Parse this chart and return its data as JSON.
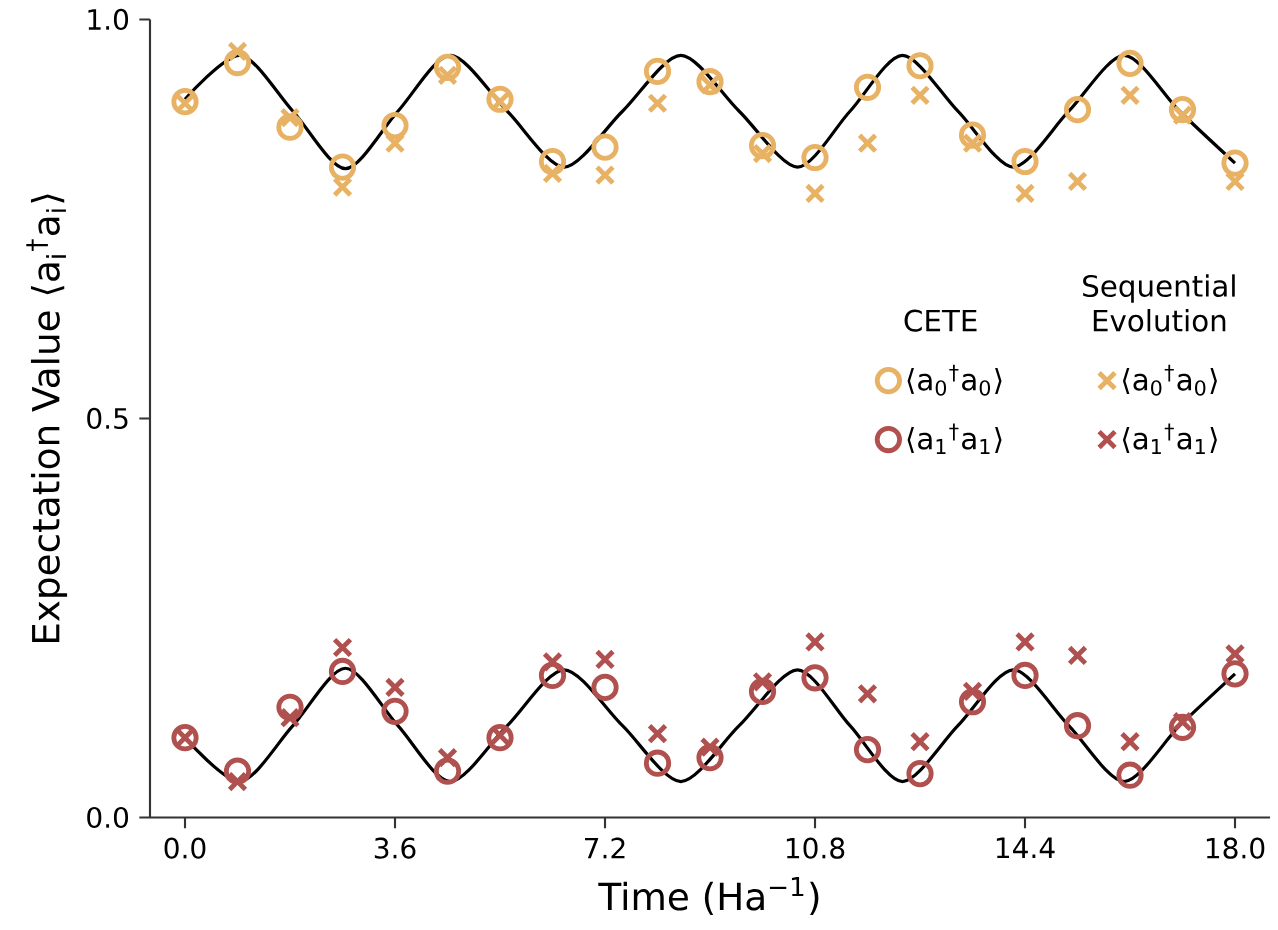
{
  "chart_data": {
    "type": "scatter",
    "xlabel": "Time (Ha$^{−1}$)",
    "ylabel": "Expectation Value ⟨a$_{i}$$^{†}$a$_{i}$⟩",
    "x": [
      0,
      0.9,
      1.8,
      2.7,
      3.6,
      4.5,
      5.4,
      6.3,
      7.2,
      8.1,
      9.0,
      9.9,
      10.8,
      11.7,
      12.6,
      13.5,
      14.4,
      15.3,
      16.2,
      17.1,
      18.0
    ],
    "xlim": [
      -0.6,
      18.6
    ],
    "xticks": [
      {
        "value": 0,
        "label": "0.0"
      },
      {
        "value": 3.6,
        "label": "3.6"
      },
      {
        "value": 7.2,
        "label": "7.2"
      },
      {
        "value": 10.8,
        "label": "10.8"
      },
      {
        "value": 14.4,
        "label": "14.4"
      },
      {
        "value": 18,
        "label": "18.0"
      }
    ],
    "ylim": [
      0,
      1
    ],
    "yticks": [
      {
        "value": 0,
        "label": "0.0"
      },
      {
        "value": 0.5,
        "label": "0.5"
      },
      {
        "value": 1,
        "label": "1.0"
      }
    ],
    "legend": "right",
    "annotations": [
      "CETE",
      "Sequential Evolution"
    ],
    "series": [
      {
        "name": "⟨a$_{0}$$^{†}$a$_{0}$⟩",
        "marker": "circle",
        "color": "#e8b265",
        "values": [
          0.897,
          0.946,
          0.865,
          0.815,
          0.867,
          0.94,
          0.9,
          0.822,
          0.84,
          0.935,
          0.922,
          0.842,
          0.827,
          0.915,
          0.942,
          0.855,
          0.822,
          0.887,
          0.945,
          0.887,
          0.82
        ]
      },
      {
        "name": "⟨a$_{1}$$^{†}$a$_{1}$⟩",
        "marker": "circle",
        "color": "#b0504f",
        "values": [
          0.1,
          0.058,
          0.138,
          0.183,
          0.133,
          0.058,
          0.1,
          0.178,
          0.163,
          0.068,
          0.075,
          0.158,
          0.175,
          0.085,
          0.055,
          0.145,
          0.178,
          0.115,
          0.053,
          0.113,
          0.18
        ]
      },
      {
        "name": "⟨a$_{0}$$^{†}$a$_{0}$⟩",
        "marker": "cross",
        "color": "#e8b265",
        "values": [
          0.895,
          0.96,
          0.877,
          0.79,
          0.845,
          0.93,
          0.897,
          0.807,
          0.805,
          0.895,
          0.918,
          0.832,
          0.782,
          0.845,
          0.905,
          0.845,
          0.782,
          0.797,
          0.905,
          0.88,
          0.797
        ]
      },
      {
        "name": "⟨a$_{1}$$^{†}$a$_{1}$⟩",
        "marker": "cross",
        "color": "#b0504f",
        "values": [
          0.1,
          0.045,
          0.125,
          0.213,
          0.163,
          0.075,
          0.103,
          0.195,
          0.198,
          0.105,
          0.088,
          0.17,
          0.22,
          0.155,
          0.095,
          0.158,
          0.22,
          0.203,
          0.095,
          0.12,
          0.205
        ]
      },
      {
        "type": "line",
        "marker": "none",
        "line_style": "solid",
        "color": "#000000",
        "x": [
          0,
          0.95,
          1.85,
          2.75,
          3.65,
          4.55,
          5.525,
          6.5,
          7.5,
          8.5,
          9.5,
          10.5,
          11.4,
          12.3,
          13.25,
          14.2,
          15.15,
          16.1,
          17.05,
          18
        ],
        "values": [
          0.9,
          0.955,
          0.885,
          0.813,
          0.885,
          0.955,
          0.885,
          0.815,
          0.885,
          0.955,
          0.885,
          0.815,
          0.885,
          0.955,
          0.885,
          0.815,
          0.885,
          0.955,
          0.885,
          0.82
        ]
      },
      {
        "type": "line",
        "marker": "none",
        "line_style": "solid",
        "color": "#000000",
        "x": [
          0,
          0.95,
          1.85,
          2.75,
          3.65,
          4.55,
          5.525,
          6.5,
          7.5,
          8.5,
          9.5,
          10.5,
          11.4,
          12.3,
          13.25,
          14.2,
          15.15,
          16.1,
          17.05,
          18
        ],
        "values": [
          0.1,
          0.045,
          0.115,
          0.187,
          0.115,
          0.045,
          0.115,
          0.185,
          0.115,
          0.045,
          0.115,
          0.185,
          0.115,
          0.045,
          0.115,
          0.185,
          0.115,
          0.045,
          0.115,
          0.18
        ]
      }
    ]
  }
}
